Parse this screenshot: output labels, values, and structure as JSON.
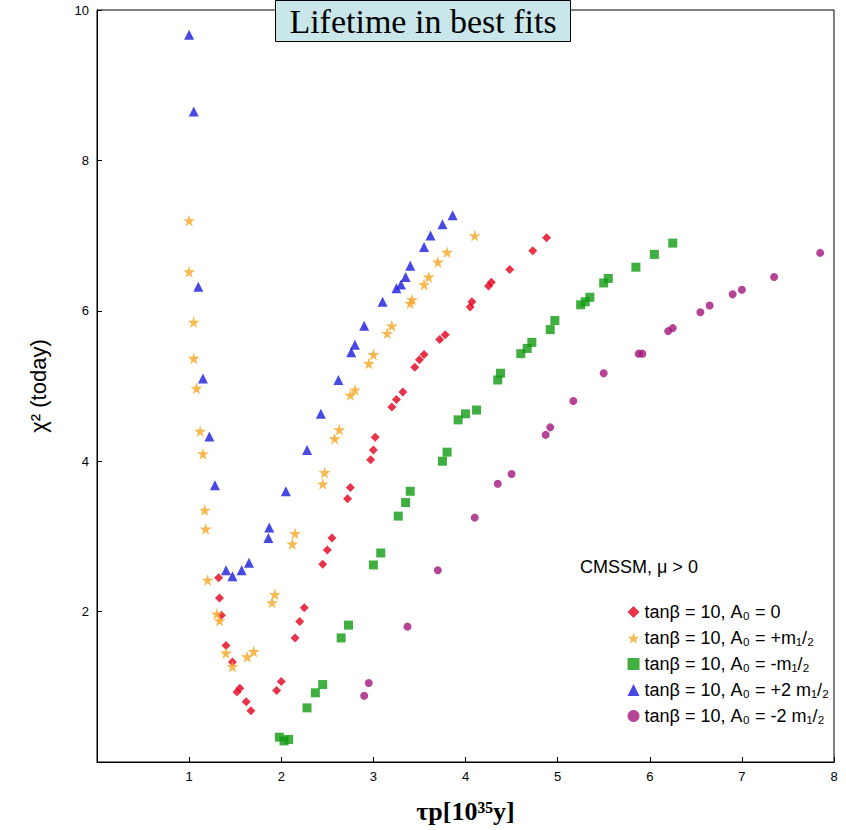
{
  "chart_data": {
    "type": "scatter",
    "title": "Lifetime in best fits",
    "x_label": "τp[10³⁵y]",
    "y_label": "χ² (today)",
    "annotations": [
      "CMSSM, μ > 0"
    ],
    "xlim": [
      0,
      8
    ],
    "xticks": [
      1,
      2,
      3,
      4,
      5,
      6,
      7,
      8
    ],
    "ylim": [
      0,
      10
    ],
    "yticks": [
      2,
      4,
      6,
      8,
      10
    ],
    "grid": false,
    "legend": "lower right",
    "series": [
      {
        "name": "tanβ = 10, A₀ = 0",
        "color": "#e3001b",
        "marker": "diamond",
        "x": [
          1.32,
          1.33,
          1.35,
          1.4,
          1.47,
          1.52,
          1.55,
          1.62,
          1.67,
          1.95,
          2.0,
          2.15,
          2.2,
          2.25,
          2.45,
          2.5,
          2.55,
          2.72,
          2.75,
          2.97,
          3.0,
          3.02,
          3.2,
          3.25,
          3.32,
          3.45,
          3.5,
          3.55,
          3.72,
          3.78,
          4.05,
          4.07,
          4.25,
          4.28,
          4.48,
          4.73,
          4.88
        ],
        "values": [
          2.45,
          2.18,
          1.95,
          1.55,
          1.33,
          0.93,
          0.98,
          0.8,
          0.68,
          0.95,
          1.07,
          1.65,
          1.87,
          2.05,
          2.63,
          2.82,
          2.98,
          3.5,
          3.65,
          4.02,
          4.15,
          4.32,
          4.72,
          4.82,
          4.92,
          5.25,
          5.35,
          5.42,
          5.62,
          5.68,
          6.05,
          6.12,
          6.33,
          6.38,
          6.55,
          6.8,
          6.97
        ]
      },
      {
        "name": "tanβ = 10, A₀ = +m₁/₂",
        "color": "#f5a623",
        "marker": "star",
        "x": [
          1.0,
          1.0,
          1.05,
          1.05,
          1.08,
          1.12,
          1.15,
          1.17,
          1.18,
          1.2,
          1.3,
          1.33,
          1.4,
          1.47,
          1.63,
          1.7,
          1.9,
          1.93,
          2.12,
          2.15,
          2.45,
          2.47,
          2.58,
          2.63,
          2.75,
          2.8,
          2.95,
          3.0,
          3.15,
          3.2,
          3.4,
          3.42,
          3.55,
          3.6,
          3.7,
          3.8,
          4.1
        ],
        "values": [
          7.2,
          6.52,
          5.85,
          5.37,
          4.97,
          4.4,
          4.1,
          3.35,
          3.1,
          2.42,
          1.97,
          1.88,
          1.45,
          1.27,
          1.4,
          1.47,
          2.12,
          2.23,
          2.9,
          3.04,
          3.7,
          3.85,
          4.3,
          4.42,
          4.88,
          4.95,
          5.3,
          5.42,
          5.7,
          5.8,
          6.1,
          6.15,
          6.35,
          6.45,
          6.65,
          6.78,
          7.0
        ]
      },
      {
        "name": "tanβ = 10, A₀ = -m₁/₂",
        "color": "#109a10",
        "marker": "square",
        "x": [
          1.98,
          2.03,
          2.08,
          2.28,
          2.37,
          2.45,
          2.65,
          2.73,
          3.0,
          3.08,
          3.27,
          3.35,
          3.4,
          3.75,
          3.8,
          3.92,
          4.0,
          4.12,
          4.35,
          4.38,
          4.6,
          4.67,
          4.72,
          4.92,
          4.97,
          5.25,
          5.3,
          5.35,
          5.5,
          5.55,
          5.85,
          6.05,
          6.25
        ],
        "values": [
          0.33,
          0.28,
          0.3,
          0.72,
          0.92,
          1.03,
          1.65,
          1.82,
          2.62,
          2.78,
          3.27,
          3.45,
          3.6,
          4.0,
          4.12,
          4.55,
          4.63,
          4.68,
          5.08,
          5.17,
          5.43,
          5.5,
          5.58,
          5.75,
          5.87,
          6.08,
          6.12,
          6.18,
          6.37,
          6.43,
          6.58,
          6.75,
          6.9
        ]
      },
      {
        "name": "tanβ = 10, A₀ = +2 m₁/₂",
        "color": "#1a1adc",
        "marker": "triangle",
        "x": [
          1.0,
          1.05,
          1.1,
          1.15,
          1.22,
          1.28,
          1.4,
          1.47,
          1.57,
          1.65,
          1.86,
          1.87,
          2.05,
          2.28,
          2.43,
          2.62,
          2.76,
          2.8,
          2.9,
          3.1,
          3.25,
          3.3,
          3.35,
          3.4,
          3.55,
          3.62,
          3.75,
          3.86
        ],
        "values": [
          9.67,
          8.65,
          6.32,
          5.1,
          4.33,
          3.68,
          2.55,
          2.47,
          2.55,
          2.65,
          2.98,
          3.12,
          3.6,
          4.15,
          4.63,
          5.08,
          5.45,
          5.55,
          5.8,
          6.12,
          6.3,
          6.35,
          6.45,
          6.6,
          6.85,
          7.0,
          7.15,
          7.27
        ]
      },
      {
        "name": "tanβ = 10, A₀ = -2 m₁/₂",
        "color": "#a3157d",
        "marker": "circle",
        "x": [
          2.9,
          2.95,
          3.37,
          3.7,
          4.1,
          4.35,
          4.5,
          4.87,
          4.92,
          5.17,
          5.5,
          5.88,
          5.92,
          6.2,
          6.25,
          6.55,
          6.65,
          6.9,
          7.0,
          7.35,
          7.85
        ],
        "values": [
          0.88,
          1.05,
          1.8,
          2.55,
          3.25,
          3.7,
          3.83,
          4.35,
          4.45,
          4.8,
          5.17,
          5.43,
          5.43,
          5.73,
          5.77,
          5.98,
          6.07,
          6.22,
          6.28,
          6.45,
          6.77
        ]
      }
    ]
  }
}
